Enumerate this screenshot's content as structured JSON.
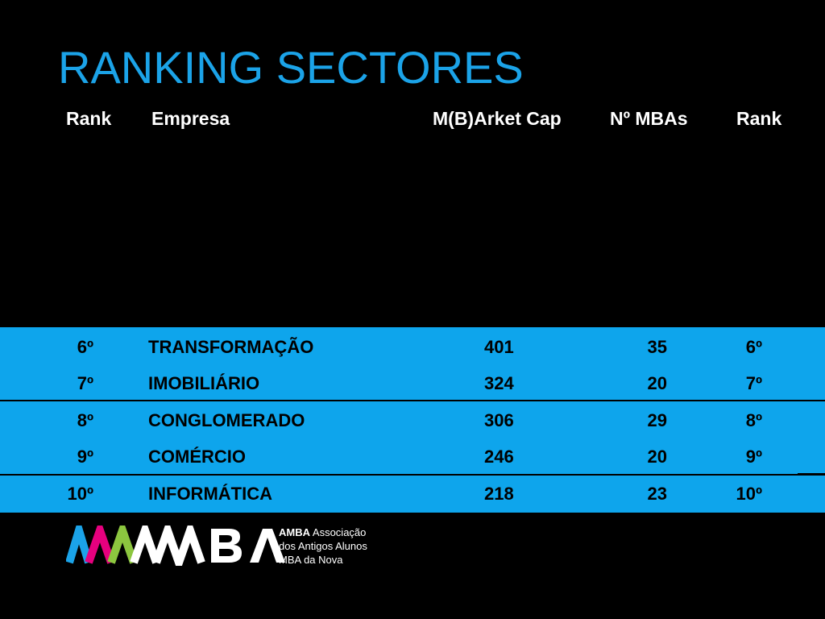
{
  "title": "RANKING SECTORES",
  "headers": {
    "rank1": "Rank",
    "empresa": "Empresa",
    "market_cap": "M(B)Arket Cap",
    "mbas": "Nº MBAs",
    "rank2": "Rank"
  },
  "rows": [
    {
      "rank": "6º",
      "name": "TRANSFORMAÇÃO",
      "market_cap": "401",
      "mbas": "35",
      "rank2": "6º"
    },
    {
      "rank": "7º",
      "name": "IMOBILIÁRIO",
      "market_cap": "324",
      "mbas": "20",
      "rank2": "7º"
    },
    {
      "rank": "8º",
      "name": "CONGLOMERADO",
      "market_cap": "306",
      "mbas": "29",
      "rank2": "8º"
    },
    {
      "rank": "9º",
      "name": "COMÉRCIO",
      "market_cap": "246",
      "mbas": "20",
      "rank2": "9º"
    },
    {
      "rank": "10º",
      "name": "INFORMÁTICA",
      "market_cap": "218",
      "mbas": "23",
      "rank2": "10º"
    }
  ],
  "logo": {
    "wordmark": "AMBA",
    "line1_rest": "Associação",
    "line2": "dos Antigos Alunos",
    "line3": "MBA da Nova"
  },
  "colors": {
    "accent": "#1ba3e8",
    "band": "#0ea5ec",
    "background": "#000000"
  }
}
